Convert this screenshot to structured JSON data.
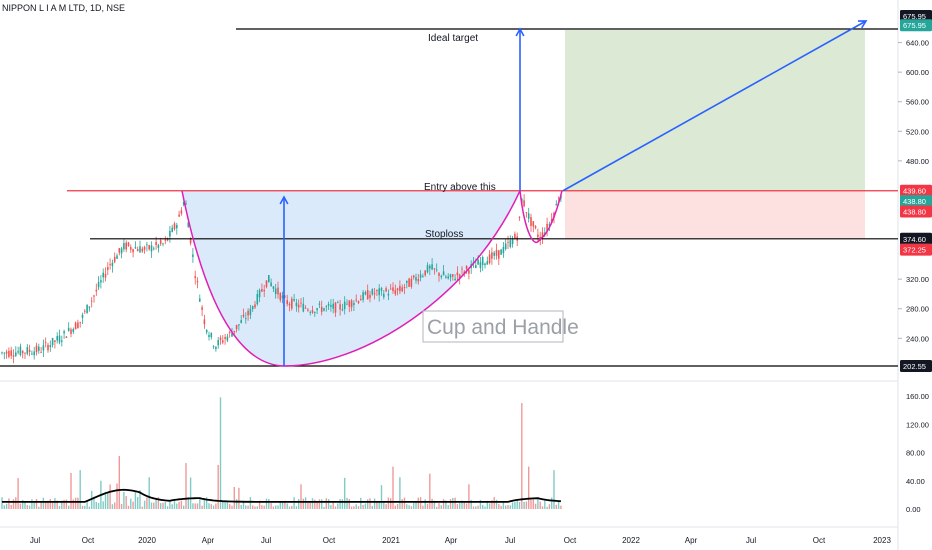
{
  "symbol_header": "NIPPON L I A M LTD, 1D, NSE",
  "colors": {
    "up": "#26a69a",
    "down": "#ef5350",
    "cup": "#e01fb5",
    "arrow": "#2962ff",
    "profit_zone": "#dbe9d5",
    "loss_zone": "#fde0e0",
    "cup_fill": "#dbeafb",
    "entry_line": "#f23645",
    "level_line": "#000000",
    "volume_ma": "#000000"
  },
  "chart_data": {
    "type": "candlestick",
    "price_axis": {
      "ticks": [
        "640.00",
        "600.00",
        "560.00",
        "520.00",
        "480.00",
        "320.00",
        "280.00",
        "240.00"
      ],
      "ylim": [
        202.55,
        675.95
      ]
    },
    "volume_axis": {
      "ticks": [
        "160.00",
        "120.00",
        "80.00",
        "40.00",
        "0.00"
      ],
      "ylim": [
        0,
        160
      ]
    },
    "time_axis": {
      "ticks": [
        "Jul",
        "Oct",
        "2020",
        "Apr",
        "Jul",
        "Oct",
        "2021",
        "Apr",
        "Jul",
        "Oct",
        "2022",
        "Apr",
        "Jul",
        "Oct",
        "2023"
      ]
    },
    "price_path": [
      {
        "t": 0.0,
        "p": 220
      },
      {
        "t": 0.05,
        "p": 225
      },
      {
        "t": 0.1,
        "p": 240
      },
      {
        "t": 0.15,
        "p": 262
      },
      {
        "t": 0.2,
        "p": 295
      },
      {
        "t": 0.3,
        "p": 360
      },
      {
        "t": 0.35,
        "p": 380
      },
      {
        "t": 0.4,
        "p": 355
      },
      {
        "t": 0.45,
        "p": 370
      },
      {
        "t": 0.5,
        "p": 365
      },
      {
        "t": 0.55,
        "p": 362
      },
      {
        "t": 0.6,
        "p": 375
      },
      {
        "t": 0.65,
        "p": 380
      },
      {
        "t": 0.7,
        "p": 365
      },
      {
        "t": 0.75,
        "p": 400
      },
      {
        "t": 0.78,
        "p": 435
      },
      {
        "t": 0.8,
        "p": 335
      },
      {
        "t": 0.83,
        "p": 270
      },
      {
        "t": 0.86,
        "p": 230
      },
      {
        "t": 0.9,
        "p": 210
      },
      {
        "t": 0.95,
        "p": 230
      },
      {
        "t": 1.0,
        "p": 240
      }
    ],
    "segments_months": {
      "start": 0,
      "end": 27
    },
    "levels": {
      "ideal_target": 675.95,
      "entry": 439.6,
      "stoploss": 374.6,
      "cup_bottom": 202.55,
      "last_price": 438.8,
      "stop_tag_low": 372.25
    },
    "annotations": {
      "ideal_target": "Ideal target",
      "entry": "Entry above this",
      "stoploss": "Stoploss",
      "pattern": "Cup and Handle"
    },
    "price_tags": [
      {
        "label": "675.95",
        "value": 675.95,
        "style": "dark"
      },
      {
        "label": "675.95",
        "value": 663.5,
        "style": "green"
      },
      {
        "label": "439.60",
        "value": 439.6,
        "style": "red"
      },
      {
        "label": "438.80",
        "value": 425.5,
        "style": "green"
      },
      {
        "label": "438.80",
        "value": 411.5,
        "style": "red"
      },
      {
        "label": "374.60",
        "value": 374.6,
        "style": "dark"
      },
      {
        "label": "372.25",
        "value": 360.0,
        "style": "red"
      },
      {
        "label": "202.55",
        "value": 202.55,
        "style": "dark"
      }
    ]
  }
}
